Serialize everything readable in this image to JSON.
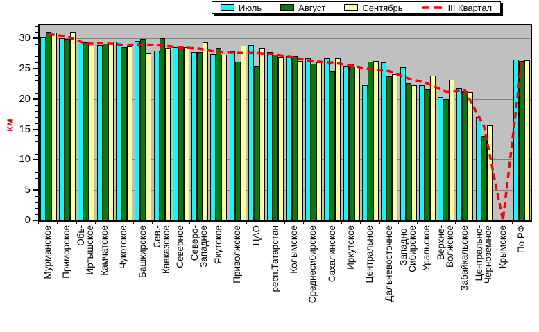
{
  "colors": {
    "page_bg": "#ffffff",
    "plot_bg": "#c0c0c0",
    "grid": "#808080",
    "axis": "#000000",
    "y_title": "#c00000",
    "july": "#00ffff",
    "august": "#008000",
    "september": "#ffff99",
    "quarter_line": "#ff0000"
  },
  "chart_data": {
    "type": "bar",
    "title": "",
    "xlabel": "",
    "ylabel": "км",
    "ylim": [
      0,
      32.3
    ],
    "yticks": [
      0,
      5,
      10,
      15,
      20,
      25,
      30
    ],
    "grid": true,
    "legend_position": "top-center",
    "plot_background": "#c0c0c0",
    "categories": [
      "Мурманское",
      "Приморское",
      "Обь-\nИртышское",
      "Камчатское",
      "Чукотское",
      "Башкирское",
      "Сев.-\nКавказское",
      "Северное",
      "Северо-\nЗападное",
      "Якутское",
      "Приволжское",
      "ЦАО",
      "респ.Татарстан",
      "Колымское",
      "Среднесибирское",
      "Сахалинское",
      "Иркутское",
      "Центральное",
      "Дальневосточное",
      "Западно-\nСибирское",
      "Уральское",
      "Верхне-\nВолжское",
      "Забайкальское",
      "Центрально-\nЧерноземное",
      "Крымское",
      "По РФ"
    ],
    "series": [
      {
        "name": "Июль",
        "color": "#00ffff",
        "values": [
          30.2,
          30.1,
          29.2,
          29.0,
          29.6,
          29.7,
          28.1,
          28.7,
          27.8,
          27.5,
          28.0,
          29.0,
          27.9,
          27.2,
          26.8,
          26.8,
          25.6,
          22.4,
          26.1,
          25.3,
          22.4,
          20.4,
          21.9,
          17.1,
          0,
          26.6
        ]
      },
      {
        "name": "Август",
        "color": "#008000",
        "values": [
          31.2,
          30.0,
          29.5,
          29.2,
          28.7,
          30.0,
          30.1,
          28.6,
          27.9,
          28.5,
          26.2,
          25.6,
          27.4,
          27.2,
          25.9,
          24.6,
          25.8,
          26.2,
          23.9,
          22.7,
          21.7,
          20.1,
          21.5,
          14.0,
          0,
          26.4
        ]
      },
      {
        "name": "Сентябрь",
        "color": "#ffff99",
        "values": [
          31.0,
          31.2,
          28.9,
          29.6,
          28.8,
          27.6,
          28.5,
          28.6,
          29.4,
          27.4,
          28.9,
          28.5,
          27.0,
          26.4,
          26.1,
          26.8,
          25.5,
          26.4,
          24.2,
          22.4,
          24.0,
          23.3,
          21.2,
          15.7,
          0,
          26.5
        ]
      }
    ],
    "line_series": {
      "name": "III Квартал",
      "color": "#ff0000",
      "style": "dashed",
      "values": [
        30.8,
        30.4,
        29.2,
        29.3,
        29.0,
        29.1,
        28.9,
        28.6,
        28.4,
        27.8,
        27.7,
        27.7,
        27.4,
        26.9,
        26.3,
        26.1,
        25.6,
        25.0,
        24.7,
        23.5,
        22.7,
        21.3,
        21.5,
        15.6,
        0.1,
        26.5
      ]
    }
  }
}
